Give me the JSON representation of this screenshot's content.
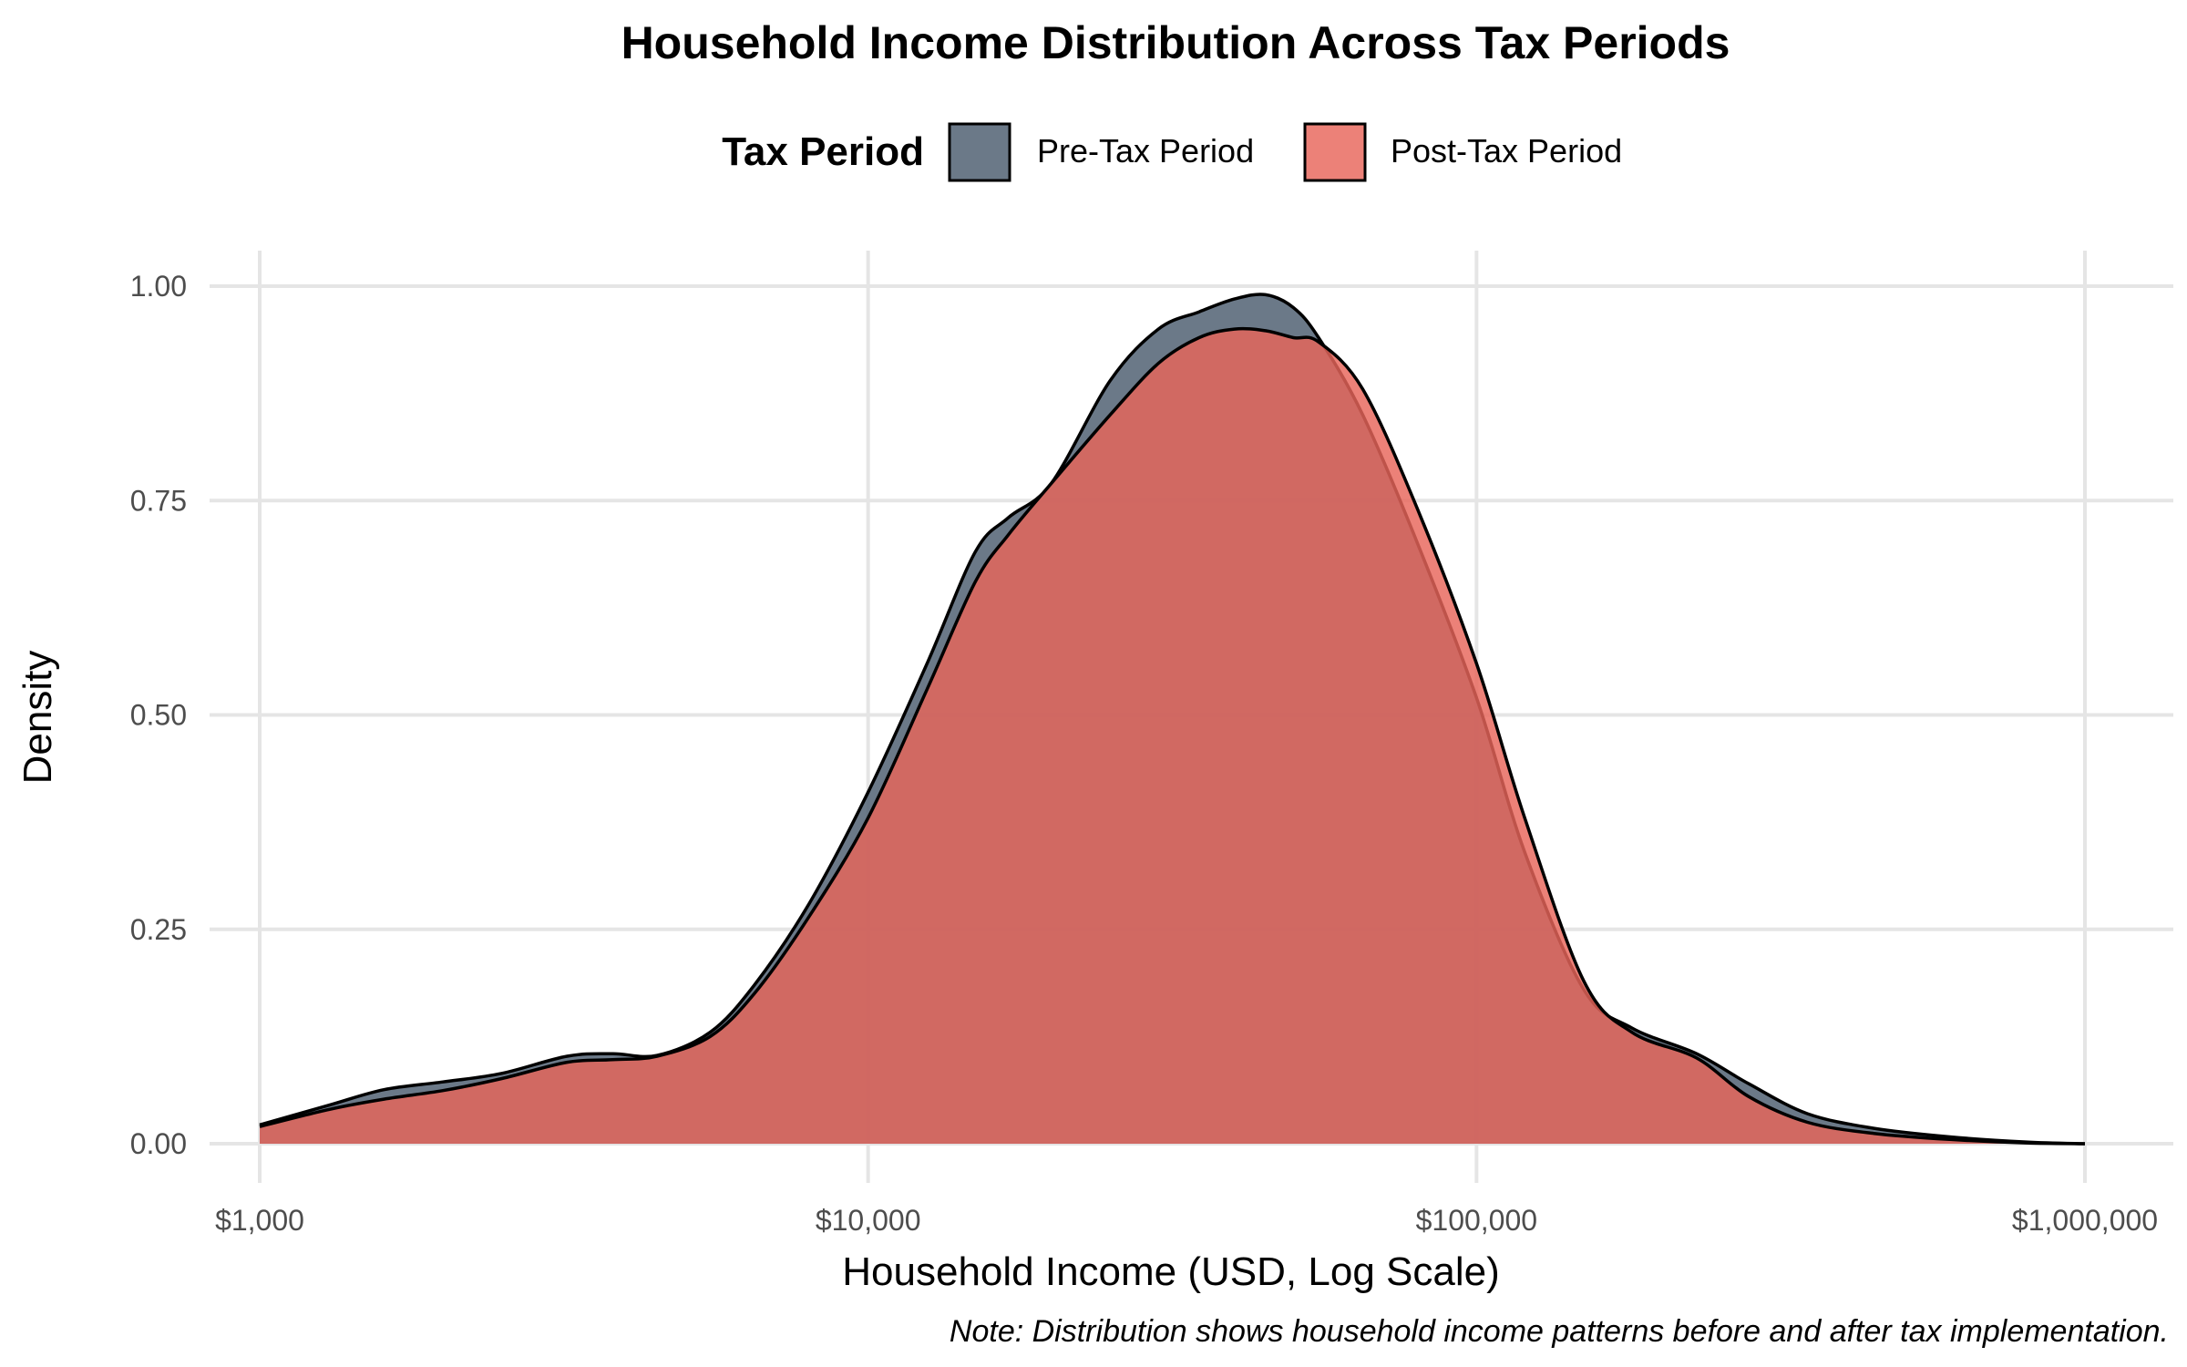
{
  "chart_data": {
    "type": "area",
    "title": "Household Income Distribution Across Tax Periods",
    "xlabel": "Household Income (USD, Log Scale)",
    "ylabel": "Density",
    "x_scale": "log10",
    "xlim": [
      1000,
      1000000
    ],
    "ylim": [
      0,
      1.0
    ],
    "x_ticks": [
      1000,
      10000,
      100000,
      1000000
    ],
    "x_tick_labels": [
      "$1,000",
      "$10,000",
      "$100,000",
      "$1,000,000"
    ],
    "y_ticks": [
      0,
      0.25,
      0.5,
      0.75,
      1.0
    ],
    "y_tick_labels": [
      "0.00",
      "0.25",
      "0.50",
      "0.75",
      "1.00"
    ],
    "legend": {
      "title": "Tax Period",
      "position": "top"
    },
    "grid": true,
    "note": "Note: Distribution shows household income patterns before and after tax implementation.",
    "x": [
      1000,
      1300,
      1600,
      2000,
      2500,
      3200,
      3800,
      4500,
      5500,
      6500,
      8000,
      10000,
      12500,
      15000,
      17000,
      20000,
      25000,
      30000,
      35000,
      40000,
      45000,
      50000,
      55000,
      65000,
      80000,
      100000,
      120000,
      150000,
      180000,
      230000,
      280000,
      350000,
      450000,
      600000,
      800000,
      1000000
    ],
    "series": [
      {
        "name": "Pre-Tax Period",
        "color": "#4a5b6e",
        "values": [
          0.022,
          0.045,
          0.063,
          0.072,
          0.082,
          0.102,
          0.105,
          0.103,
          0.13,
          0.185,
          0.28,
          0.41,
          0.56,
          0.69,
          0.73,
          0.77,
          0.89,
          0.95,
          0.97,
          0.985,
          0.99,
          0.975,
          0.94,
          0.85,
          0.7,
          0.52,
          0.34,
          0.18,
          0.135,
          0.105,
          0.07,
          0.035,
          0.018,
          0.008,
          0.002,
          0.0
        ]
      },
      {
        "name": "Post-Tax Period",
        "color": "#e8655a",
        "values": [
          0.02,
          0.04,
          0.052,
          0.062,
          0.076,
          0.095,
          0.098,
          0.102,
          0.125,
          0.175,
          0.265,
          0.38,
          0.53,
          0.655,
          0.71,
          0.77,
          0.85,
          0.91,
          0.94,
          0.95,
          0.948,
          0.94,
          0.935,
          0.88,
          0.74,
          0.56,
          0.38,
          0.19,
          0.13,
          0.1,
          0.055,
          0.025,
          0.012,
          0.005,
          0.001,
          0.0
        ]
      }
    ]
  }
}
